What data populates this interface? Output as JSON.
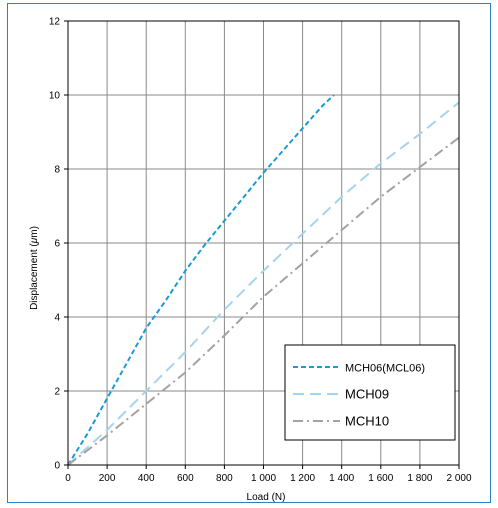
{
  "chart_data": {
    "type": "line",
    "title": "",
    "xlabel": "Load (N)",
    "ylabel_parts": [
      "Displacement (",
      "μ",
      "m)"
    ],
    "xlim": [
      0,
      2000
    ],
    "ylim": [
      0,
      12
    ],
    "x_ticks": [
      0,
      200,
      400,
      600,
      800,
      1000,
      1200,
      1400,
      1600,
      1800,
      2000
    ],
    "x_tick_labels": [
      "0",
      "200",
      "400",
      "600",
      "800",
      "1 000",
      "1 200",
      "1 400",
      "1 600",
      "1 800",
      "2 000"
    ],
    "y_ticks": [
      0,
      2,
      4,
      6,
      8,
      10,
      12
    ],
    "y_tick_labels": [
      "0",
      "2",
      "4",
      "6",
      "8",
      "10",
      "12"
    ],
    "grid": true,
    "legend_position": "bottom-right",
    "series": [
      {
        "name": "MCH06(MCL06)",
        "color": "#1a9ad6",
        "dash": "short-dash",
        "x": [
          0,
          100,
          200,
          300,
          400,
          500,
          600,
          700,
          800,
          900,
          1000,
          1100,
          1200,
          1300,
          1360
        ],
        "y": [
          0,
          0.85,
          1.8,
          2.75,
          3.7,
          4.45,
          5.25,
          5.95,
          6.6,
          7.25,
          7.9,
          8.5,
          9.1,
          9.7,
          10.0
        ]
      },
      {
        "name": "MCH09",
        "color": "#a7d3ee",
        "dash": "long-dash",
        "x": [
          0,
          200,
          400,
          600,
          800,
          1000,
          1200,
          1400,
          1600,
          1800,
          2000
        ],
        "y": [
          0,
          0.95,
          2.0,
          3.05,
          4.2,
          5.25,
          6.25,
          7.25,
          8.15,
          8.95,
          9.8
        ]
      },
      {
        "name": "MCH10",
        "color": "#a3a3a3",
        "dash": "dash-dot",
        "x": [
          0,
          200,
          400,
          600,
          800,
          1000,
          1200,
          1400,
          1600,
          1800,
          2000
        ],
        "y": [
          0,
          0.8,
          1.65,
          2.5,
          3.5,
          4.55,
          5.45,
          6.35,
          7.25,
          8.05,
          8.85
        ]
      }
    ]
  }
}
